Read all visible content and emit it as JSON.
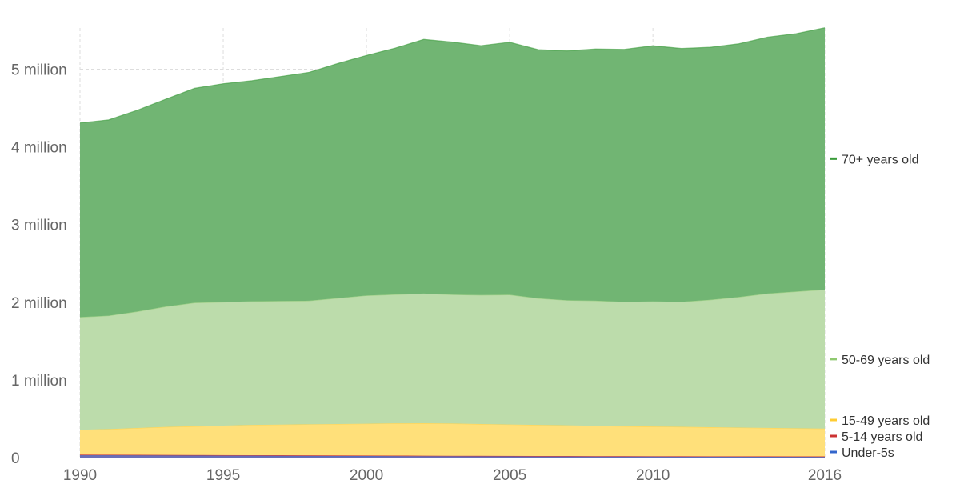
{
  "chart_data": {
    "type": "area",
    "stacked": true,
    "title": "",
    "xlabel": "",
    "ylabel": "",
    "xlim": [
      1990,
      2016
    ],
    "ylim": [
      0,
      5500000
    ],
    "grid": true,
    "legend_placement": "right",
    "x_ticks": [
      {
        "value": 1990,
        "label": "1990"
      },
      {
        "value": 1995,
        "label": "1995"
      },
      {
        "value": 2000,
        "label": "2000"
      },
      {
        "value": 2005,
        "label": "2005"
      },
      {
        "value": 2010,
        "label": "2010"
      },
      {
        "value": 2016,
        "label": "2016"
      }
    ],
    "y_ticks": [
      {
        "value": 0,
        "label": "0"
      },
      {
        "value": 1000000,
        "label": "1 million"
      },
      {
        "value": 2000000,
        "label": "2 million"
      },
      {
        "value": 3000000,
        "label": "3 million"
      },
      {
        "value": 4000000,
        "label": "4 million"
      },
      {
        "value": 5000000,
        "label": "5 million"
      }
    ],
    "x": [
      1990,
      1991,
      1992,
      1993,
      1994,
      1995,
      1996,
      1997,
      1998,
      1999,
      2000,
      2001,
      2002,
      2003,
      2004,
      2005,
      2006,
      2007,
      2008,
      2009,
      2010,
      2011,
      2012,
      2013,
      2014,
      2015,
      2016
    ],
    "series": [
      {
        "name": "Under-5s",
        "color": "#3366cc",
        "fill": "#6a6fb8",
        "values": [
          30000,
          29000,
          28000,
          27000,
          26000,
          25000,
          24000,
          23000,
          22000,
          21000,
          20000,
          19000,
          18000,
          17000,
          16000,
          15000,
          14500,
          14000,
          13500,
          13000,
          12500,
          12000,
          11500,
          11000,
          10500,
          10000,
          9500
        ]
      },
      {
        "name": "5-14 years old",
        "color": "#cc3333",
        "fill": "#c94a4a",
        "values": [
          8000,
          8000,
          7800,
          7700,
          7600,
          7500,
          7400,
          7300,
          7200,
          7100,
          7000,
          6900,
          6800,
          6700,
          6600,
          6500,
          6400,
          6300,
          6200,
          6100,
          6000,
          5900,
          5800,
          5700,
          5600,
          5500,
          5400
        ]
      },
      {
        "name": "15-49 years old",
        "color": "#ffcc33",
        "fill": "#ffe07a",
        "values": [
          320000,
          330000,
          345000,
          360000,
          370000,
          380000,
          390000,
          395000,
          400000,
          405000,
          410000,
          415000,
          418000,
          415000,
          410000,
          405000,
          400000,
          395000,
          390000,
          386000,
          382000,
          378000,
          374000,
          370000,
          366000,
          362000,
          358000
        ]
      },
      {
        "name": "50-69 years old",
        "color": "#8fc970",
        "fill": "#bcdcab",
        "values": [
          1450000,
          1460000,
          1500000,
          1550000,
          1590000,
          1590000,
          1590000,
          1590000,
          1590000,
          1620000,
          1650000,
          1660000,
          1670000,
          1660000,
          1660000,
          1670000,
          1630000,
          1610000,
          1610000,
          1600000,
          1610000,
          1610000,
          1640000,
          1680000,
          1730000,
          1760000,
          1790000
        ]
      },
      {
        "name": "70+ years old",
        "color": "#3a9b3a",
        "fill": "#71b573",
        "values": [
          2500000,
          2520000,
          2590000,
          2670000,
          2760000,
          2810000,
          2840000,
          2890000,
          2940000,
          3020000,
          3090000,
          3170000,
          3270000,
          3250000,
          3210000,
          3250000,
          3200000,
          3210000,
          3240000,
          3250000,
          3290000,
          3260000,
          3250000,
          3260000,
          3300000,
          3320000,
          3370000
        ]
      }
    ]
  }
}
